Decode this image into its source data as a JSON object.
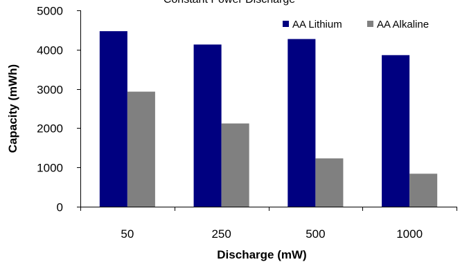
{
  "chart_data": {
    "type": "bar",
    "title": "Constant Power Discharge",
    "xlabel": "Discharge (mW)",
    "ylabel": "Capacity (mWh)",
    "categories": [
      "50",
      "250",
      "500",
      "1000"
    ],
    "ylim": [
      0,
      5000
    ],
    "yticks": [
      "0",
      "1000",
      "2000",
      "3000",
      "4000",
      "5000"
    ],
    "grid": false,
    "legend_position": "top-right",
    "series": [
      {
        "name": "AA Lithium",
        "color": "#000080",
        "values": [
          4470,
          4130,
          4270,
          3860
        ]
      },
      {
        "name": "AA Alkaline",
        "color": "#808080",
        "values": [
          2930,
          2120,
          1230,
          840
        ]
      }
    ]
  }
}
